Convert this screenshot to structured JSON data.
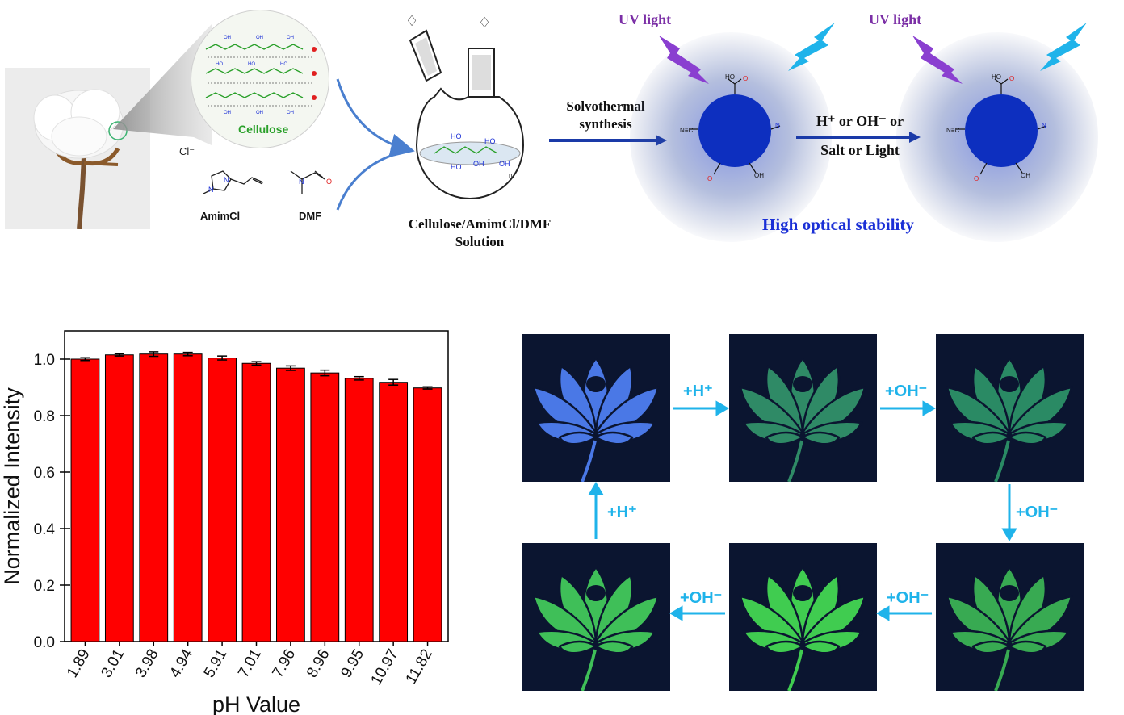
{
  "scheme": {
    "cellulose_label": "Cellulose",
    "amimcl_label": "AmimCl",
    "dmf_label": "DMF",
    "chloride": "Cl⁻",
    "flask_caption_line1": "Cellulose/AmimCl/DMF",
    "flask_caption_line2": "Solution",
    "solvothermal_line1": "Solvothermal",
    "solvothermal_line2": "synthesis",
    "uv_light_1": "UV light",
    "uv_light_2": "UV light",
    "stimuli_line1": "H⁺ or OH⁻ or",
    "stimuli_line2": "Salt or Light",
    "stability_label": "High optical stability",
    "colors": {
      "uv_text": "#7b2fa6",
      "stability_text": "#1a2fd6",
      "cellulose_text": "#2aa02a",
      "dot_blue": "#0d2fbf",
      "arrow_blue": "#4a7fcf",
      "cyan": "#1fb3ea"
    }
  },
  "chart_data": {
    "type": "bar",
    "categories": [
      "1.89",
      "3.01",
      "3.98",
      "4.94",
      "5.91",
      "7.01",
      "7.96",
      "8.96",
      "9.95",
      "10.97",
      "11.82"
    ],
    "values": [
      1.0,
      1.015,
      1.018,
      1.018,
      1.004,
      0.985,
      0.968,
      0.951,
      0.932,
      0.918,
      0.898
    ],
    "errors": [
      0.005,
      0.004,
      0.008,
      0.006,
      0.007,
      0.006,
      0.008,
      0.01,
      0.006,
      0.01,
      0.004
    ],
    "xlabel": "pH Value",
    "ylabel": "Normalized Intensity",
    "ylim": [
      0,
      1.1
    ],
    "yticks": [
      "0.0",
      "0.2",
      "0.4",
      "0.6",
      "0.8",
      "1.0"
    ],
    "bar_color": "#ff0000"
  },
  "cycle": {
    "arrow_labels": {
      "top_1": "+H⁺",
      "top_2": "+OH⁻",
      "right_down": "+OH⁻",
      "bottom_1": "+OH⁻",
      "bottom_2": "+OH⁻",
      "left_up": "+H⁺"
    },
    "photo_colors": [
      "#4a78e6",
      "#2f8a66",
      "#2a8a64",
      "#3fbf58",
      "#40cc50",
      "#38aa52"
    ]
  }
}
